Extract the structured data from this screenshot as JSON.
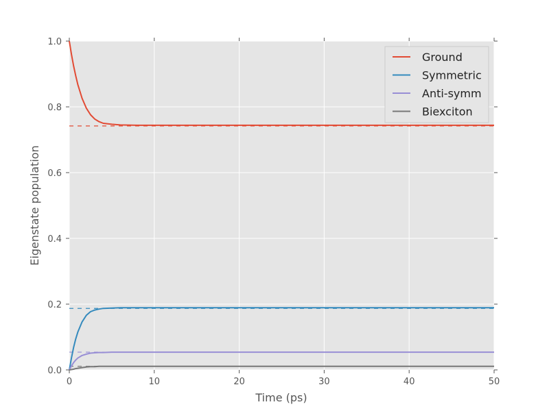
{
  "chart_data": {
    "type": "line",
    "title": "",
    "xlabel": "Time (ps)",
    "ylabel": "Eigenstate population",
    "xlim": [
      0,
      50
    ],
    "ylim": [
      0.0,
      1.0
    ],
    "xticks": [
      0,
      10,
      20,
      30,
      40,
      50
    ],
    "yticks": [
      0.0,
      0.2,
      0.4,
      0.6,
      0.8,
      1.0
    ],
    "xtick_labels": [
      "0",
      "10",
      "20",
      "30",
      "40",
      "50"
    ],
    "ytick_labels": [
      "0.0",
      "0.2",
      "0.4",
      "0.6",
      "0.8",
      "1.0"
    ],
    "grid": true,
    "legend_position": "top-right",
    "background_color": "#e5e5e5",
    "series": [
      {
        "name": "Ground",
        "color": "#e24a33",
        "initial": 1.0,
        "steady_state": 0.744,
        "dashed_reference": 0.742,
        "x": [
          0,
          0.25,
          0.5,
          0.75,
          1,
          1.5,
          2,
          2.5,
          3,
          3.5,
          4,
          5,
          6,
          8,
          10,
          20,
          30,
          40,
          50
        ],
        "y": [
          1.0,
          0.96,
          0.925,
          0.895,
          0.868,
          0.826,
          0.796,
          0.776,
          0.763,
          0.755,
          0.75,
          0.747,
          0.745,
          0.744,
          0.744,
          0.744,
          0.744,
          0.744,
          0.744
        ]
      },
      {
        "name": "Symmetric",
        "color": "#348abd",
        "initial": 0.0,
        "steady_state": 0.189,
        "dashed_reference": 0.187,
        "x": [
          0,
          0.25,
          0.5,
          0.75,
          1,
          1.5,
          2,
          2.5,
          3,
          3.5,
          4,
          5,
          6,
          8,
          10,
          20,
          30,
          40,
          50
        ],
        "y": [
          0.0,
          0.036,
          0.068,
          0.094,
          0.115,
          0.146,
          0.166,
          0.177,
          0.182,
          0.185,
          0.187,
          0.188,
          0.189,
          0.189,
          0.189,
          0.189,
          0.189,
          0.189,
          0.189
        ]
      },
      {
        "name": "Anti-symm",
        "color": "#988ed5",
        "initial": 0.0,
        "steady_state": 0.054,
        "dashed_reference": 0.054,
        "x": [
          0,
          0.25,
          0.5,
          0.75,
          1,
          1.5,
          2,
          2.5,
          3,
          3.5,
          4,
          5,
          6,
          8,
          10,
          20,
          30,
          40,
          50
        ],
        "y": [
          0.0,
          0.012,
          0.022,
          0.03,
          0.036,
          0.044,
          0.048,
          0.051,
          0.052,
          0.053,
          0.053,
          0.054,
          0.054,
          0.054,
          0.054,
          0.054,
          0.054,
          0.054,
          0.054
        ]
      },
      {
        "name": "Biexciton",
        "color": "#777777",
        "initial": 0.0,
        "steady_state": 0.011,
        "dashed_reference": 0.011,
        "x": [
          0,
          0.25,
          0.5,
          0.75,
          1,
          1.5,
          2,
          2.5,
          3,
          3.5,
          4,
          5,
          6,
          8,
          10,
          20,
          30,
          40,
          50
        ],
        "y": [
          0.0,
          0.001,
          0.002,
          0.004,
          0.005,
          0.007,
          0.009,
          0.01,
          0.01,
          0.011,
          0.011,
          0.011,
          0.011,
          0.011,
          0.011,
          0.011,
          0.011,
          0.011,
          0.011
        ]
      }
    ]
  }
}
